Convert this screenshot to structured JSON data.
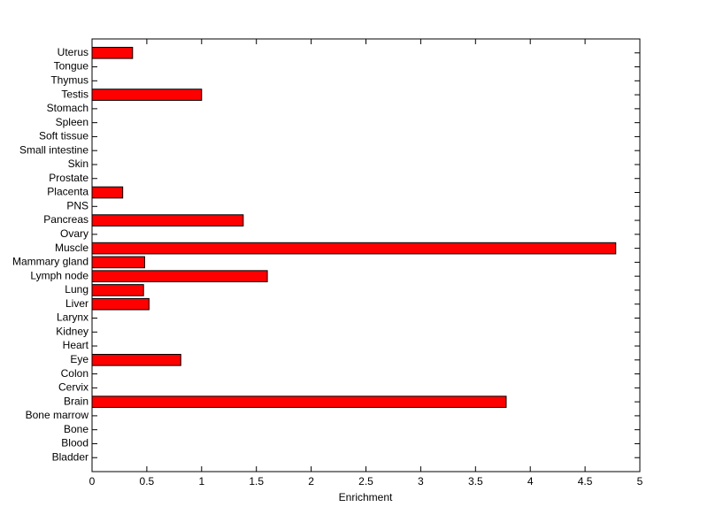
{
  "chart_data": {
    "type": "barh",
    "xlabel": "Enrichment",
    "categories": [
      "Bladder",
      "Blood",
      "Bone",
      "Bone marrow",
      "Brain",
      "Cervix",
      "Colon",
      "Eye",
      "Heart",
      "Kidney",
      "Larynx",
      "Liver",
      "Lung",
      "Lymph node",
      "Mammary gland",
      "Muscle",
      "Ovary",
      "Pancreas",
      "PNS",
      "Placenta",
      "Prostate",
      "Skin",
      "Small intestine",
      "Soft tissue",
      "Spleen",
      "Stomach",
      "Testis",
      "Thymus",
      "Tongue",
      "Uterus"
    ],
    "values": [
      0,
      0,
      0,
      0,
      3.78,
      0,
      0,
      0.81,
      0,
      0,
      0,
      0.52,
      0.47,
      1.6,
      0.48,
      4.78,
      0,
      1.38,
      0,
      0.28,
      0,
      0,
      0,
      0,
      0,
      0,
      1.0,
      0,
      0,
      0.37
    ],
    "color": "#ff0000",
    "xlim": [
      0,
      5
    ],
    "xticks": [
      0,
      0.5,
      1,
      1.5,
      2,
      2.5,
      3,
      3.5,
      4,
      4.5,
      5
    ]
  }
}
